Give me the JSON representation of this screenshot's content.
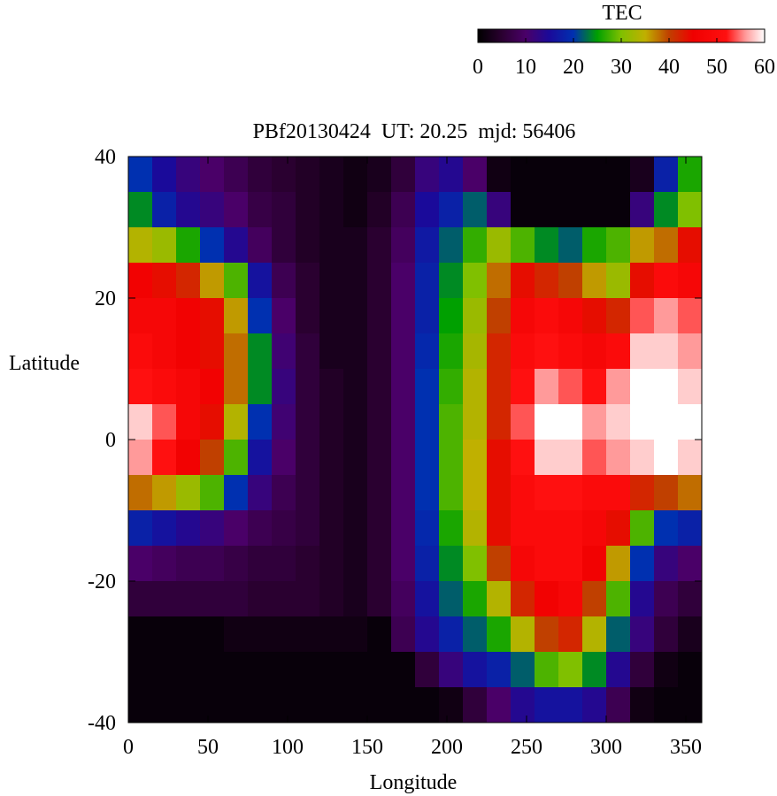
{
  "chart_data": {
    "type": "heatmap",
    "title": "PBf20130424  UT: 20.25  mjd: 56406",
    "x_label": "Longitude",
    "y_label": "Latitude",
    "colorbar_label": "TEC",
    "x": [
      7.5,
      22.5,
      37.5,
      52.5,
      67.5,
      82.5,
      97.5,
      112.5,
      127.5,
      142.5,
      157.5,
      172.5,
      187.5,
      202.5,
      217.5,
      232.5,
      247.5,
      262.5,
      277.5,
      292.5,
      307.5,
      322.5,
      337.5,
      352.5
    ],
    "y": [
      37.5,
      32.5,
      27.5,
      22.5,
      17.5,
      12.5,
      7.5,
      2.5,
      -2.5,
      -7.5,
      -12.5,
      -17.5,
      -22.5,
      -27.5,
      -32.5,
      -37.5
    ],
    "values": [
      [
        20,
        15,
        12,
        10,
        8,
        6,
        5,
        4,
        3,
        2,
        3,
        6,
        12,
        14,
        10,
        2,
        1,
        1,
        1,
        1,
        1,
        3,
        18,
        26
      ],
      [
        24,
        18,
        14,
        12,
        10,
        7,
        6,
        4,
        3,
        2,
        4,
        8,
        15,
        18,
        22,
        12,
        1,
        1,
        1,
        1,
        1,
        12,
        24,
        30
      ],
      [
        34,
        32,
        26,
        20,
        14,
        9,
        6,
        4,
        3,
        3,
        5,
        9,
        17,
        22,
        27,
        32,
        28,
        24,
        22,
        26,
        28,
        36,
        38,
        44
      ],
      [
        46,
        44,
        42,
        36,
        28,
        16,
        8,
        5,
        3,
        3,
        5,
        10,
        18,
        24,
        30,
        38,
        44,
        42,
        40,
        36,
        32,
        44,
        50,
        48
      ],
      [
        48,
        48,
        46,
        44,
        36,
        20,
        10,
        5,
        3,
        3,
        5,
        10,
        18,
        25,
        32,
        40,
        48,
        50,
        48,
        44,
        42,
        54,
        56,
        54
      ],
      [
        50,
        48,
        46,
        44,
        38,
        24,
        11,
        6,
        3,
        3,
        5,
        10,
        19,
        26,
        33,
        42,
        50,
        52,
        50,
        48,
        50,
        58,
        58,
        56
      ],
      [
        52,
        50,
        48,
        46,
        38,
        24,
        12,
        6,
        4,
        3,
        5,
        10,
        20,
        27,
        34,
        42,
        52,
        56,
        54,
        52,
        56,
        60,
        60,
        58
      ],
      [
        58,
        54,
        48,
        44,
        34,
        20,
        11,
        6,
        4,
        3,
        5,
        10,
        20,
        28,
        34,
        42,
        54,
        60,
        60,
        56,
        58,
        60,
        60,
        60
      ],
      [
        56,
        52,
        46,
        40,
        28,
        16,
        10,
        6,
        4,
        3,
        5,
        10,
        20,
        28,
        35,
        44,
        52,
        58,
        58,
        54,
        56,
        58,
        60,
        58
      ],
      [
        38,
        36,
        32,
        28,
        20,
        12,
        8,
        6,
        4,
        3,
        5,
        10,
        20,
        28,
        35,
        44,
        50,
        52,
        52,
        50,
        50,
        42,
        40,
        38
      ],
      [
        18,
        16,
        14,
        12,
        10,
        8,
        7,
        6,
        4,
        3,
        5,
        10,
        19,
        26,
        34,
        44,
        50,
        50,
        50,
        48,
        44,
        28,
        20,
        18
      ],
      [
        10,
        9,
        8,
        8,
        7,
        6,
        6,
        5,
        4,
        3,
        5,
        10,
        18,
        24,
        30,
        40,
        48,
        50,
        50,
        46,
        36,
        20,
        12,
        10
      ],
      [
        6,
        6,
        6,
        6,
        6,
        5,
        5,
        5,
        4,
        3,
        5,
        9,
        16,
        22,
        26,
        34,
        42,
        46,
        48,
        40,
        28,
        14,
        8,
        6
      ],
      [
        1,
        1,
        1,
        1,
        2,
        2,
        2,
        2,
        2,
        2,
        1,
        8,
        14,
        18,
        22,
        26,
        34,
        40,
        42,
        34,
        22,
        12,
        6,
        3
      ],
      [
        1,
        1,
        1,
        1,
        1,
        1,
        1,
        1,
        1,
        1,
        1,
        1,
        6,
        12,
        16,
        18,
        22,
        28,
        30,
        24,
        14,
        6,
        2,
        1
      ],
      [
        1,
        1,
        1,
        1,
        1,
        1,
        1,
        1,
        1,
        1,
        1,
        1,
        1,
        2,
        6,
        10,
        14,
        16,
        16,
        14,
        8,
        2,
        1,
        1
      ]
    ],
    "xlim": [
      0,
      360
    ],
    "xticks": [
      0,
      50,
      100,
      150,
      200,
      250,
      300,
      350
    ],
    "ylim": [
      -40,
      40
    ],
    "yticks": [
      -40,
      -20,
      0,
      20,
      40
    ],
    "clim": [
      0,
      60
    ],
    "cticks": [
      0,
      10,
      20,
      30,
      40,
      50,
      60
    ],
    "colorscale": [
      [
        0,
        "#000000"
      ],
      [
        5,
        "#2a0030"
      ],
      [
        10,
        "#4a0068"
      ],
      [
        15,
        "#1a0a9a"
      ],
      [
        20,
        "#0030b0"
      ],
      [
        25,
        "#00a000"
      ],
      [
        30,
        "#80c000"
      ],
      [
        35,
        "#c0b000"
      ],
      [
        40,
        "#c04000"
      ],
      [
        45,
        "#f00000"
      ],
      [
        52,
        "#ff1010"
      ],
      [
        56,
        "#ff9a9a"
      ],
      [
        60,
        "#ffffff"
      ]
    ]
  }
}
